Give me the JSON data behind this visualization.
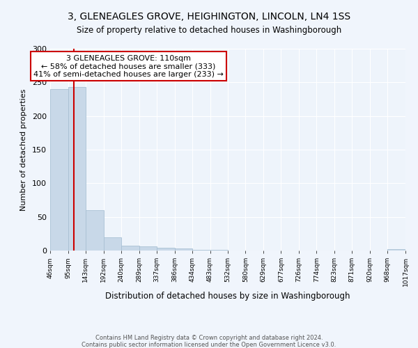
{
  "title": "3, GLENEAGLES GROVE, HEIGHINGTON, LINCOLN, LN4 1SS",
  "subtitle": "Size of property relative to detached houses in Washingborough",
  "xlabel": "Distribution of detached houses by size in Washingborough",
  "ylabel": "Number of detached properties",
  "bar_color": "#c8d8e8",
  "bar_edge_color": "#a8c0d4",
  "bg_color": "#eef4fb",
  "fig_color": "#f0f5fc",
  "red_line_x": 110,
  "annotation_title": "3 GLENEAGLES GROVE: 110sqm",
  "annotation_line1": "← 58% of detached houses are smaller (333)",
  "annotation_line2": "41% of semi-detached houses are larger (233) →",
  "annotation_box_color": "#ffffff",
  "annotation_box_edge": "#cc0000",
  "red_line_color": "#cc0000",
  "bin_edges": [
    46,
    95,
    143,
    192,
    240,
    289,
    337,
    386,
    434,
    483,
    532,
    580,
    629,
    677,
    726,
    774,
    823,
    871,
    920,
    968,
    1017
  ],
  "bar_heights": [
    240,
    243,
    60,
    20,
    7,
    6,
    4,
    3,
    1,
    1,
    0,
    0,
    0,
    0,
    0,
    0,
    0,
    0,
    0,
    2
  ],
  "ylim": [
    0,
    300
  ],
  "yticks": [
    0,
    50,
    100,
    150,
    200,
    250,
    300
  ],
  "footer1": "Contains HM Land Registry data © Crown copyright and database right 2024.",
  "footer2": "Contains public sector information licensed under the Open Government Licence v3.0."
}
